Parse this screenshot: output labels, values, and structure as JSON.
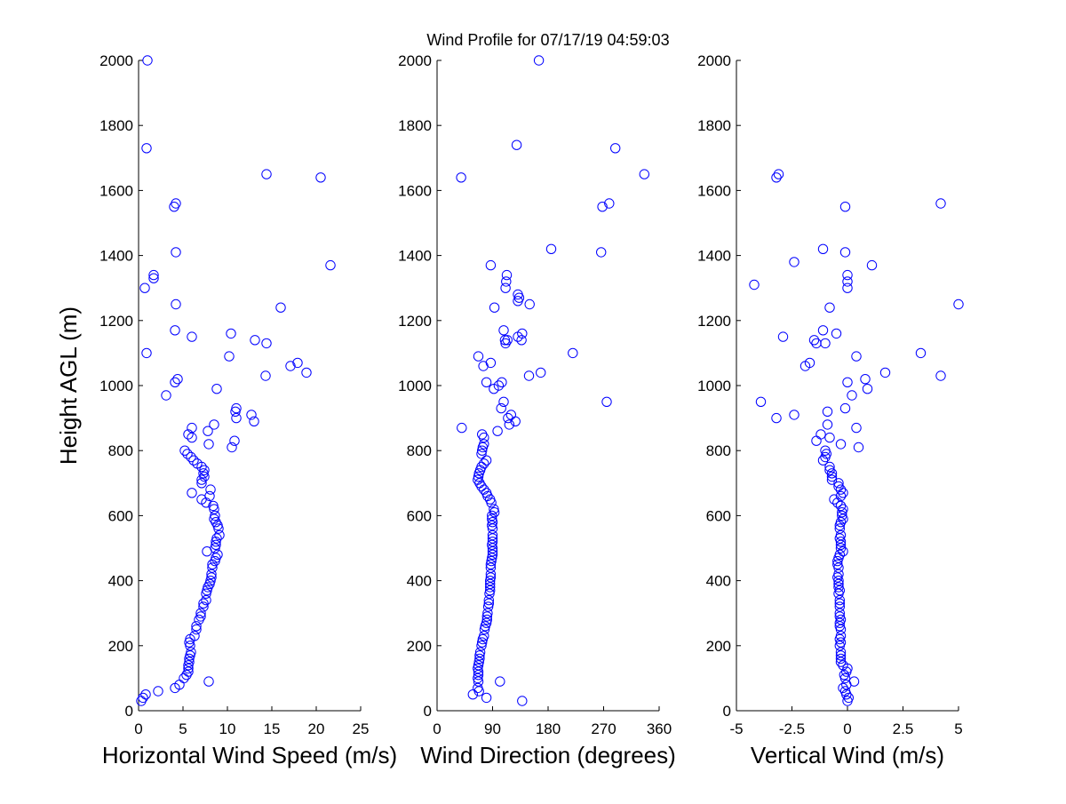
{
  "figure": {
    "title": "Wind Profile for  07/17/19 04:59:03",
    "ylabel": "Height AGL (m)"
  },
  "chart_data": [
    {
      "type": "scatter",
      "xlabel": "Horizontal Wind Speed (m/s)",
      "ylabel": "Height AGL (m)",
      "xlim": [
        0,
        25
      ],
      "ylim": [
        0,
        2000
      ],
      "xticks": [
        0,
        5,
        10,
        15,
        20,
        25
      ],
      "xtick_labels": [
        "0",
        "5",
        "10",
        "15",
        "20",
        "25"
      ],
      "yticks": [
        0,
        200,
        400,
        600,
        800,
        1000,
        1200,
        1400,
        1600,
        1800,
        2000
      ],
      "ytick_labels": [
        "0",
        "200",
        "400",
        "600",
        "800",
        "1000",
        "1200",
        "1400",
        "1600",
        "1800",
        "2000"
      ],
      "marker_color": "#0000ff",
      "points": [
        [
          0.3,
          30
        ],
        [
          0.5,
          40
        ],
        [
          0.8,
          50
        ],
        [
          2.2,
          60
        ],
        [
          4.1,
          70
        ],
        [
          4.6,
          80
        ],
        [
          7.9,
          90
        ],
        [
          5.1,
          100
        ],
        [
          5.4,
          110
        ],
        [
          5.6,
          120
        ],
        [
          5.6,
          130
        ],
        [
          5.6,
          140
        ],
        [
          5.7,
          150
        ],
        [
          5.7,
          160
        ],
        [
          5.8,
          170
        ],
        [
          5.9,
          180
        ],
        [
          5.8,
          200
        ],
        [
          5.7,
          210
        ],
        [
          5.8,
          220
        ],
        [
          6.3,
          230
        ],
        [
          6.5,
          250
        ],
        [
          6.5,
          260
        ],
        [
          6.8,
          280
        ],
        [
          7.0,
          290
        ],
        [
          7.0,
          300
        ],
        [
          7.3,
          320
        ],
        [
          7.3,
          330
        ],
        [
          7.6,
          340
        ],
        [
          7.6,
          360
        ],
        [
          7.7,
          370
        ],
        [
          7.8,
          380
        ],
        [
          8.0,
          390
        ],
        [
          8.1,
          400
        ],
        [
          8.2,
          410
        ],
        [
          8.2,
          420
        ],
        [
          8.3,
          440
        ],
        [
          8.3,
          450
        ],
        [
          8.6,
          460
        ],
        [
          8.7,
          470
        ],
        [
          8.9,
          480
        ],
        [
          7.7,
          490
        ],
        [
          8.6,
          500
        ],
        [
          8.7,
          510
        ],
        [
          8.7,
          520
        ],
        [
          8.8,
          530
        ],
        [
          9.1,
          540
        ],
        [
          9.0,
          560
        ],
        [
          8.9,
          570
        ],
        [
          8.7,
          580
        ],
        [
          8.5,
          590
        ],
        [
          8.6,
          600
        ],
        [
          8.5,
          620
        ],
        [
          8.4,
          630
        ],
        [
          7.6,
          640
        ],
        [
          7.1,
          650
        ],
        [
          8.0,
          660
        ],
        [
          6.0,
          670
        ],
        [
          8.1,
          680
        ],
        [
          7.1,
          700
        ],
        [
          7.1,
          710
        ],
        [
          7.4,
          720
        ],
        [
          7.3,
          730
        ],
        [
          7.4,
          740
        ],
        [
          7.1,
          750
        ],
        [
          6.6,
          760
        ],
        [
          6.2,
          770
        ],
        [
          5.9,
          780
        ],
        [
          5.5,
          790
        ],
        [
          5.2,
          800
        ],
        [
          10.5,
          810
        ],
        [
          7.9,
          820
        ],
        [
          10.8,
          830
        ],
        [
          6.0,
          840
        ],
        [
          5.6,
          850
        ],
        [
          7.8,
          860
        ],
        [
          6.0,
          870
        ],
        [
          8.5,
          880
        ],
        [
          13.0,
          890
        ],
        [
          11.0,
          900
        ],
        [
          12.7,
          910
        ],
        [
          10.9,
          920
        ],
        [
          11.0,
          930
        ],
        [
          8.8,
          990
        ],
        [
          3.1,
          970
        ],
        [
          4.1,
          1010
        ],
        [
          4.4,
          1020
        ],
        [
          14.3,
          1030
        ],
        [
          18.9,
          1040
        ],
        [
          17.1,
          1060
        ],
        [
          17.9,
          1070
        ],
        [
          10.2,
          1090
        ],
        [
          0.9,
          1100
        ],
        [
          14.4,
          1130
        ],
        [
          13.1,
          1140
        ],
        [
          6.0,
          1150
        ],
        [
          10.4,
          1160
        ],
        [
          4.1,
          1170
        ],
        [
          16.0,
          1240
        ],
        [
          4.2,
          1250
        ],
        [
          0.7,
          1300
        ],
        [
          1.7,
          1330
        ],
        [
          1.7,
          1340
        ],
        [
          21.6,
          1370
        ],
        [
          4.2,
          1410
        ],
        [
          4.0,
          1550
        ],
        [
          4.2,
          1560
        ],
        [
          20.5,
          1640
        ],
        [
          14.4,
          1650
        ],
        [
          0.9,
          1730
        ],
        [
          1.0,
          2000
        ]
      ]
    },
    {
      "type": "scatter",
      "xlabel": "Wind Direction (degrees)",
      "ylabel": "",
      "xlim": [
        0,
        360
      ],
      "ylim": [
        0,
        2000
      ],
      "xticks": [
        0,
        90,
        180,
        270,
        360
      ],
      "xtick_labels": [
        "0",
        "90",
        "180",
        "270",
        "360"
      ],
      "yticks": [
        0,
        200,
        400,
        600,
        800,
        1000,
        1200,
        1400,
        1600,
        1800,
        2000
      ],
      "ytick_labels": [
        "0",
        "200",
        "400",
        "600",
        "800",
        "1000",
        "1200",
        "1400",
        "1600",
        "1800",
        "2000"
      ],
      "marker_color": "#0000ff",
      "points": [
        [
          138,
          30
        ],
        [
          80,
          40
        ],
        [
          58,
          50
        ],
        [
          68,
          60
        ],
        [
          66,
          70
        ],
        [
          67,
          90
        ],
        [
          102,
          90
        ],
        [
          66,
          100
        ],
        [
          67,
          110
        ],
        [
          67,
          120
        ],
        [
          66,
          130
        ],
        [
          67,
          140
        ],
        [
          68,
          150
        ],
        [
          69,
          160
        ],
        [
          69,
          170
        ],
        [
          70,
          180
        ],
        [
          72,
          200
        ],
        [
          73,
          210
        ],
        [
          74,
          220
        ],
        [
          76,
          230
        ],
        [
          77,
          250
        ],
        [
          78,
          260
        ],
        [
          80,
          270
        ],
        [
          81,
          280
        ],
        [
          81,
          290
        ],
        [
          82,
          300
        ],
        [
          83,
          320
        ],
        [
          84,
          330
        ],
        [
          84,
          340
        ],
        [
          85,
          360
        ],
        [
          86,
          370
        ],
        [
          86,
          380
        ],
        [
          86,
          390
        ],
        [
          86,
          400
        ],
        [
          87,
          410
        ],
        [
          87,
          420
        ],
        [
          87,
          440
        ],
        [
          87,
          450
        ],
        [
          88,
          460
        ],
        [
          89,
          470
        ],
        [
          90,
          480
        ],
        [
          90,
          490
        ],
        [
          90,
          500
        ],
        [
          89,
          510
        ],
        [
          90,
          520
        ],
        [
          90,
          530
        ],
        [
          90,
          540
        ],
        [
          90,
          560
        ],
        [
          89,
          570
        ],
        [
          90,
          580
        ],
        [
          89,
          590
        ],
        [
          89,
          600
        ],
        [
          93,
          610
        ],
        [
          92,
          620
        ],
        [
          88,
          640
        ],
        [
          86,
          650
        ],
        [
          82,
          660
        ],
        [
          80,
          670
        ],
        [
          76,
          680
        ],
        [
          72,
          690
        ],
        [
          69,
          700
        ],
        [
          66,
          710
        ],
        [
          67,
          720
        ],
        [
          68,
          730
        ],
        [
          70,
          740
        ],
        [
          72,
          750
        ],
        [
          76,
          760
        ],
        [
          80,
          770
        ],
        [
          72,
          790
        ],
        [
          73,
          800
        ],
        [
          74,
          810
        ],
        [
          76,
          820
        ],
        [
          76,
          840
        ],
        [
          73,
          850
        ],
        [
          98,
          860
        ],
        [
          40,
          870
        ],
        [
          117,
          880
        ],
        [
          127,
          890
        ],
        [
          115,
          900
        ],
        [
          120,
          910
        ],
        [
          104,
          930
        ],
        [
          108,
          950
        ],
        [
          275,
          950
        ],
        [
          92,
          990
        ],
        [
          100,
          1000
        ],
        [
          80,
          1010
        ],
        [
          105,
          1010
        ],
        [
          149,
          1030
        ],
        [
          168,
          1040
        ],
        [
          75,
          1060
        ],
        [
          87,
          1070
        ],
        [
          67,
          1090
        ],
        [
          220,
          1100
        ],
        [
          110,
          1140
        ],
        [
          114,
          1140
        ],
        [
          137,
          1140
        ],
        [
          131,
          1150
        ],
        [
          138,
          1160
        ],
        [
          108,
          1170
        ],
        [
          111,
          1130
        ],
        [
          93,
          1240
        ],
        [
          150,
          1250
        ],
        [
          131,
          1260
        ],
        [
          133,
          1270
        ],
        [
          131,
          1280
        ],
        [
          111,
          1300
        ],
        [
          112,
          1320
        ],
        [
          113,
          1340
        ],
        [
          87,
          1370
        ],
        [
          266,
          1410
        ],
        [
          185,
          1420
        ],
        [
          268,
          1550
        ],
        [
          279,
          1560
        ],
        [
          39,
          1640
        ],
        [
          336,
          1650
        ],
        [
          289,
          1730
        ],
        [
          129,
          1740
        ],
        [
          165,
          2000
        ]
      ]
    },
    {
      "type": "scatter",
      "xlabel": "Vertical Wind (m/s)",
      "ylabel": "",
      "xlim": [
        -5,
        5
      ],
      "ylim": [
        0,
        2000
      ],
      "xticks": [
        -5,
        -2.5,
        0,
        2.5,
        5
      ],
      "xtick_labels": [
        "-5",
        "-2.5",
        "0",
        "2.5",
        "5"
      ],
      "yticks": [
        0,
        200,
        400,
        600,
        800,
        1000,
        1200,
        1400,
        1600,
        1800,
        2000
      ],
      "ytick_labels": [
        "0",
        "200",
        "400",
        "600",
        "800",
        "1000",
        "1200",
        "1400",
        "1600",
        "1800",
        "2000"
      ],
      "marker_color": "#0000ff",
      "points": [
        [
          0.0,
          30
        ],
        [
          0.05,
          40
        ],
        [
          -0.05,
          50
        ],
        [
          -0.1,
          60
        ],
        [
          -0.2,
          70
        ],
        [
          -0.05,
          80
        ],
        [
          0.3,
          90
        ],
        [
          -0.1,
          100
        ],
        [
          -0.15,
          110
        ],
        [
          -0.05,
          120
        ],
        [
          0.0,
          130
        ],
        [
          -0.2,
          140
        ],
        [
          -0.3,
          150
        ],
        [
          -0.3,
          160
        ],
        [
          -0.3,
          170
        ],
        [
          -0.3,
          180
        ],
        [
          -0.35,
          200
        ],
        [
          -0.3,
          210
        ],
        [
          -0.35,
          220
        ],
        [
          -0.3,
          230
        ],
        [
          -0.3,
          250
        ],
        [
          -0.35,
          260
        ],
        [
          -0.35,
          270
        ],
        [
          -0.3,
          280
        ],
        [
          -0.35,
          290
        ],
        [
          -0.35,
          300
        ],
        [
          -0.35,
          320
        ],
        [
          -0.35,
          330
        ],
        [
          -0.35,
          340
        ],
        [
          -0.4,
          360
        ],
        [
          -0.35,
          370
        ],
        [
          -0.4,
          380
        ],
        [
          -0.4,
          390
        ],
        [
          -0.4,
          400
        ],
        [
          -0.45,
          410
        ],
        [
          -0.4,
          420
        ],
        [
          -0.4,
          440
        ],
        [
          -0.45,
          450
        ],
        [
          -0.45,
          460
        ],
        [
          -0.4,
          470
        ],
        [
          -0.35,
          480
        ],
        [
          -0.2,
          490
        ],
        [
          -0.3,
          500
        ],
        [
          -0.3,
          510
        ],
        [
          -0.3,
          520
        ],
        [
          -0.35,
          530
        ],
        [
          -0.3,
          540
        ],
        [
          -0.35,
          560
        ],
        [
          -0.35,
          570
        ],
        [
          -0.3,
          580
        ],
        [
          -0.2,
          590
        ],
        [
          -0.25,
          600
        ],
        [
          -0.25,
          610
        ],
        [
          -0.2,
          620
        ],
        [
          -0.3,
          630
        ],
        [
          -0.45,
          640
        ],
        [
          -0.6,
          650
        ],
        [
          -0.3,
          660
        ],
        [
          -0.2,
          670
        ],
        [
          -0.3,
          680
        ],
        [
          -0.4,
          690
        ],
        [
          -0.4,
          700
        ],
        [
          -0.7,
          710
        ],
        [
          -0.7,
          720
        ],
        [
          -0.7,
          730
        ],
        [
          -0.8,
          740
        ],
        [
          -0.8,
          750
        ],
        [
          -1.1,
          770
        ],
        [
          -1.0,
          780
        ],
        [
          -0.95,
          790
        ],
        [
          -1.0,
          800
        ],
        [
          0.5,
          810
        ],
        [
          -0.3,
          820
        ],
        [
          -1.4,
          830
        ],
        [
          -0.8,
          840
        ],
        [
          -1.2,
          850
        ],
        [
          0.4,
          870
        ],
        [
          -0.9,
          880
        ],
        [
          -3.2,
          900
        ],
        [
          -2.4,
          910
        ],
        [
          -0.9,
          920
        ],
        [
          -0.1,
          930
        ],
        [
          -3.9,
          950
        ],
        [
          0.2,
          970
        ],
        [
          0.9,
          990
        ],
        [
          0.0,
          1010
        ],
        [
          0.8,
          1020
        ],
        [
          4.2,
          1030
        ],
        [
          1.7,
          1040
        ],
        [
          -1.9,
          1060
        ],
        [
          -1.7,
          1070
        ],
        [
          0.4,
          1090
        ],
        [
          3.3,
          1100
        ],
        [
          -1.4,
          1130
        ],
        [
          -1.0,
          1130
        ],
        [
          -1.5,
          1140
        ],
        [
          -2.9,
          1150
        ],
        [
          -0.5,
          1160
        ],
        [
          -1.1,
          1170
        ],
        [
          -0.8,
          1240
        ],
        [
          5.0,
          1250
        ],
        [
          0.0,
          1300
        ],
        [
          -4.2,
          1310
        ],
        [
          0.0,
          1320
        ],
        [
          0.0,
          1340
        ],
        [
          1.1,
          1370
        ],
        [
          -2.4,
          1380
        ],
        [
          -0.1,
          1410
        ],
        [
          -1.1,
          1420
        ],
        [
          -0.1,
          1550
        ],
        [
          4.2,
          1560
        ],
        [
          -3.2,
          1640
        ],
        [
          -3.1,
          1650
        ]
      ]
    }
  ]
}
